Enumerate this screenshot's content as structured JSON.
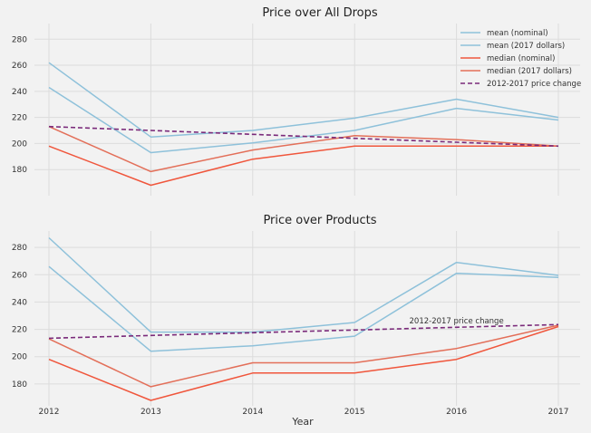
{
  "figure": {
    "xlabel": "Year",
    "background": "#f2f2f2"
  },
  "chart_data": [
    {
      "type": "line",
      "title": "Price over All Drops",
      "x": [
        2012,
        2013,
        2014,
        2015,
        2016,
        2017
      ],
      "ylim": [
        160,
        292
      ],
      "yticks": [
        180,
        200,
        220,
        240,
        260,
        280
      ],
      "grid": true,
      "legend_position": "top-right",
      "series": [
        {
          "name": "mean (nominal)",
          "color": "#8ec1da",
          "dash": false,
          "values": [
            243,
            193,
            200.5,
            210,
            227,
            218
          ]
        },
        {
          "name": "mean (2017 dollars)",
          "color": "#8ec1da",
          "dash": false,
          "values": [
            262,
            205,
            210,
            219.5,
            234,
            220
          ]
        },
        {
          "name": "median (nominal)",
          "color": "#f0563c",
          "dash": false,
          "values": [
            198,
            168,
            188,
            198,
            198,
            198
          ]
        },
        {
          "name": "median (2017 dollars)",
          "color": "#e36f59",
          "dash": false,
          "values": [
            213,
            178.5,
            195,
            206,
            203,
            198
          ]
        },
        {
          "name": "2012-2017 price change",
          "color": "#7a2a7a",
          "dash": true,
          "values": [
            213,
            210,
            207,
            204,
            201,
            198
          ]
        }
      ]
    },
    {
      "type": "line",
      "title": "Price over Products",
      "x": [
        2012,
        2013,
        2014,
        2015,
        2016,
        2017
      ],
      "ylim": [
        164,
        292
      ],
      "yticks": [
        180,
        200,
        220,
        240,
        260,
        280
      ],
      "xticks": [
        "2012",
        "2013",
        "2014",
        "2015",
        "2016",
        "2017"
      ],
      "grid": true,
      "annotations": [
        {
          "text": "2012-2017 price change",
          "x": 2016,
          "y": 225
        }
      ],
      "series": [
        {
          "color": "#8ec1da",
          "dash": false,
          "values": [
            266,
            204,
            208,
            215,
            261,
            258
          ]
        },
        {
          "color": "#8ec1da",
          "dash": false,
          "values": [
            287,
            218,
            218,
            225,
            269,
            259.5
          ]
        },
        {
          "color": "#f0563c",
          "dash": false,
          "values": [
            198,
            168,
            188,
            188,
            198,
            222
          ]
        },
        {
          "color": "#e36f59",
          "dash": false,
          "values": [
            213,
            178,
            195.5,
            195.5,
            206,
            223
          ]
        },
        {
          "color": "#7a2a7a",
          "dash": true,
          "values": [
            213.5,
            215.5,
            217.5,
            219.5,
            221.5,
            223.5
          ]
        }
      ]
    }
  ]
}
